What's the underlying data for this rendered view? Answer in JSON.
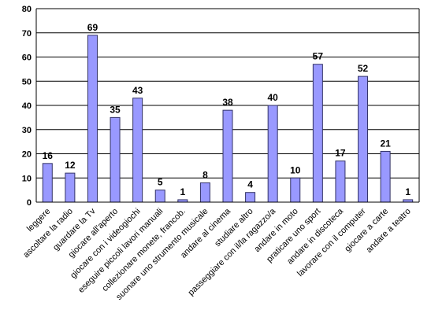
{
  "chart_data": {
    "type": "bar",
    "categories": [
      "leggere",
      "ascoltare la radio",
      "guardare la Tv",
      "giocare all'aperto",
      "giocare con i videogiochi",
      "eseguire piccoli lavori manuali",
      "collezionare monete, francob.",
      "suonare uno strumento musicale",
      "andare al cinema",
      "studiare altro",
      "passeggiare con il/la ragazzo/a",
      "andare in moto",
      "praticare uno sport",
      "andare in discoteca",
      "lavorare con il computer",
      "giocare a carte",
      "andare a teatro"
    ],
    "values": [
      16,
      12,
      69,
      35,
      43,
      5,
      1,
      8,
      38,
      4,
      40,
      10,
      57,
      17,
      52,
      21,
      1
    ],
    "data_labels": [
      "16",
      "12",
      "69",
      "35",
      "43",
      "5",
      "1",
      "8",
      "38",
      "4",
      "40",
      "10",
      "57",
      "17",
      "52",
      "21",
      "1"
    ],
    "y_ticks": [
      "0",
      "10",
      "20",
      "30",
      "40",
      "50",
      "60",
      "70",
      "80"
    ],
    "ylim": [
      0,
      80
    ],
    "grid": true,
    "legend": "none",
    "colors": {
      "bar_fill": "#9999ff",
      "bar_stroke": "#333366",
      "plot_bg": "#ffffff",
      "grid": "#000000"
    }
  }
}
